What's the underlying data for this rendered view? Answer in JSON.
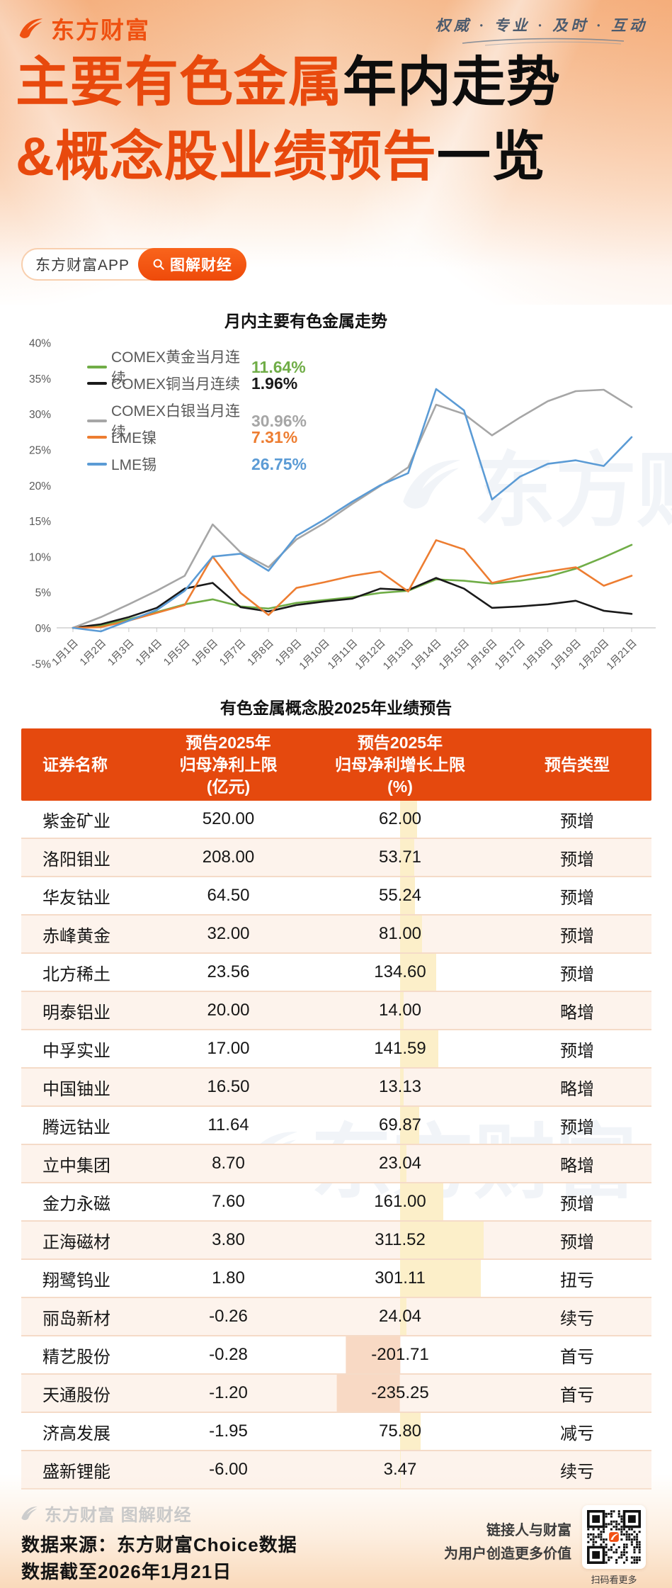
{
  "brand": {
    "logo_text": "东方财富",
    "slogan": "权威 · 专业 · 及时 · 互动",
    "app_badge": "东方财富APP",
    "app_badge_btn": "图解财经"
  },
  "title": {
    "line1_orange": "主要有色金属",
    "line1_black": "年内走势",
    "line2_orange": "&概念股业绩预告",
    "line2_black": "一览"
  },
  "watermark": {
    "chart": "东方财富",
    "table": "东方财富"
  },
  "chart_data": {
    "type": "line",
    "title": "月内主要有色金属走势",
    "xlabel": "",
    "ylabel": "",
    "ylim": [
      -5,
      40
    ],
    "grid": false,
    "legend_position": "top-left",
    "y_ticks": [
      40,
      35,
      30,
      25,
      20,
      15,
      10,
      5,
      0,
      -5
    ],
    "x": [
      "1月1日",
      "1月2日",
      "1月3日",
      "1月4日",
      "1月5日",
      "1月6日",
      "1月7日",
      "1月8日",
      "1月9日",
      "1月10日",
      "1月11日",
      "1月12日",
      "1月13日",
      "1月14日",
      "1月15日",
      "1月16日",
      "1月17日",
      "1月18日",
      "1月19日",
      "1月20日",
      "1月21日"
    ],
    "series": [
      {
        "name": "COMEX黄金当月连续",
        "color": "#70ad47",
        "final_label": "11.64%",
        "values": [
          0,
          0.3,
          1.2,
          2.2,
          3.3,
          4.0,
          3.0,
          2.7,
          3.5,
          3.9,
          4.3,
          4.9,
          5.2,
          6.8,
          6.6,
          6.2,
          6.6,
          7.2,
          8.3,
          9.9,
          11.64
        ]
      },
      {
        "name": "COMEX铜当月连续",
        "color": "#1a1a1a",
        "final_label": "1.96%",
        "values": [
          0,
          0.5,
          1.5,
          2.8,
          5.5,
          6.3,
          2.9,
          2.3,
          3.2,
          3.7,
          4.1,
          5.5,
          5.3,
          7.0,
          5.5,
          2.8,
          3.0,
          3.3,
          3.8,
          2.4,
          1.96
        ]
      },
      {
        "name": "COMEX白银当月连续",
        "color": "#a6a6a6",
        "final_label": "30.96%",
        "values": [
          0,
          1.5,
          3.3,
          5.2,
          7.3,
          14.5,
          10.6,
          8.5,
          12.4,
          14.7,
          17.4,
          19.9,
          22.5,
          31.3,
          30.0,
          27.0,
          29.5,
          31.8,
          33.2,
          33.4,
          30.96
        ]
      },
      {
        "name": "LME镍",
        "color": "#ed7d31",
        "final_label": "7.31%",
        "values": [
          0,
          0.1,
          1.0,
          2.1,
          3.2,
          10.0,
          4.9,
          1.8,
          5.6,
          6.4,
          7.3,
          7.9,
          5.1,
          12.3,
          11.0,
          6.3,
          7.2,
          7.9,
          8.5,
          5.9,
          7.31
        ]
      },
      {
        "name": "LME锡",
        "color": "#5b9bd5",
        "final_label": "26.75%",
        "values": [
          0,
          -0.5,
          1.0,
          2.5,
          5.2,
          10.0,
          10.4,
          8.0,
          12.9,
          15.2,
          17.7,
          20.0,
          21.7,
          33.5,
          30.5,
          18.0,
          21.2,
          23.0,
          23.5,
          22.7,
          26.75
        ]
      }
    ]
  },
  "table": {
    "title": "有色金属概念股2025年业绩预告",
    "headers": [
      {
        "lines": [
          "证券名称"
        ]
      },
      {
        "lines": [
          "预告2025年",
          "归母净利上限",
          "(亿元)"
        ]
      },
      {
        "lines": [
          "预告2025年",
          "归母净利增长上限",
          "(%)"
        ]
      },
      {
        "lines": [
          "预告类型"
        ]
      }
    ],
    "rows": [
      {
        "name": "紫金矿业",
        "profit": "520.00",
        "growth": "62.00",
        "type": "预增"
      },
      {
        "name": "洛阳钼业",
        "profit": "208.00",
        "growth": "53.71",
        "type": "预增"
      },
      {
        "name": "华友钴业",
        "profit": "64.50",
        "growth": "55.24",
        "type": "预增"
      },
      {
        "name": "赤峰黄金",
        "profit": "32.00",
        "growth": "81.00",
        "type": "预增"
      },
      {
        "name": "北方稀土",
        "profit": "23.56",
        "growth": "134.60",
        "type": "预增"
      },
      {
        "name": "明泰铝业",
        "profit": "20.00",
        "growth": "14.00",
        "type": "略增"
      },
      {
        "name": "中孚实业",
        "profit": "17.00",
        "growth": "141.59",
        "type": "预增"
      },
      {
        "name": "中国铀业",
        "profit": "16.50",
        "growth": "13.13",
        "type": "略增"
      },
      {
        "name": "腾远钴业",
        "profit": "11.64",
        "growth": "69.87",
        "type": "预增"
      },
      {
        "name": "立中集团",
        "profit": "8.70",
        "growth": "23.04",
        "type": "略增"
      },
      {
        "name": "金力永磁",
        "profit": "7.60",
        "growth": "161.00",
        "type": "预增"
      },
      {
        "name": "正海磁材",
        "profit": "3.80",
        "growth": "311.52",
        "type": "预增"
      },
      {
        "name": "翔鹭钨业",
        "profit": "1.80",
        "growth": "301.11",
        "type": "扭亏"
      },
      {
        "name": "丽岛新材",
        "profit": "-0.26",
        "growth": "24.04",
        "type": "续亏"
      },
      {
        "name": "精艺股份",
        "profit": "-0.28",
        "growth": "-201.71",
        "type": "首亏"
      },
      {
        "name": "天通股份",
        "profit": "-1.20",
        "growth": "-235.25",
        "type": "首亏"
      },
      {
        "name": "济高发展",
        "profit": "-1.95",
        "growth": "75.80",
        "type": "减亏"
      },
      {
        "name": "盛新锂能",
        "profit": "-6.00",
        "growth": "3.47",
        "type": "续亏"
      }
    ]
  },
  "footer": {
    "watermark": "东方财富 图解财经",
    "source_line1": "数据来源：东方财富Choice数据",
    "source_line2": "数据截至2026年1月21日",
    "right_line1": "链接人与财富",
    "right_line2": "为用户创造更多价值",
    "qr_caption": "扫码看更多"
  }
}
